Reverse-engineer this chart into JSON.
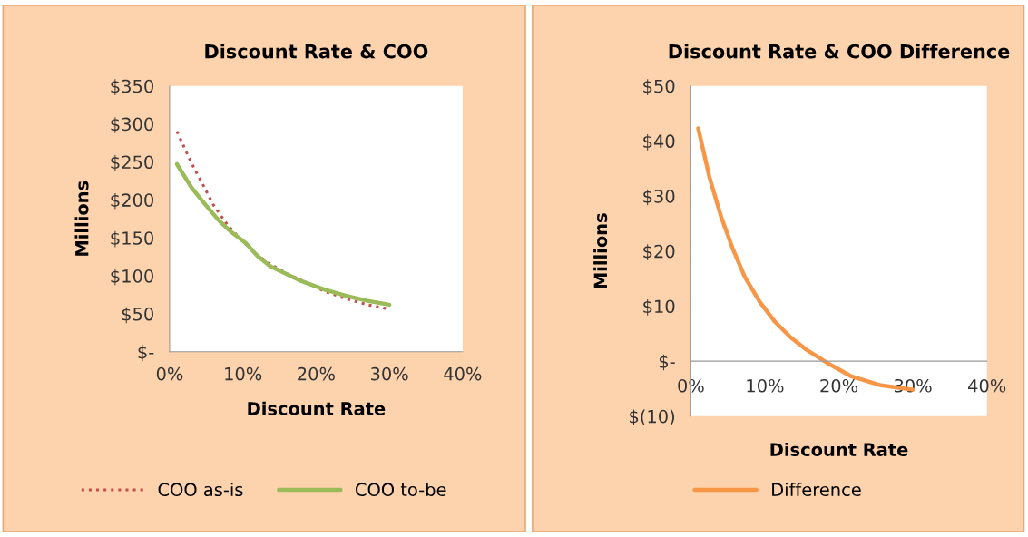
{
  "chart_data": [
    {
      "type": "line",
      "title": "Discount Rate & COO",
      "xlabel": "Discount Rate",
      "ylabel": "Millions",
      "legend": "bottom",
      "xlim": [
        0,
        40
      ],
      "xticks": [
        {
          "value": 0,
          "label": "0%"
        },
        {
          "value": 10,
          "label": "10%"
        },
        {
          "value": 20,
          "label": "20%"
        },
        {
          "value": 30,
          "label": "30%"
        },
        {
          "value": 40,
          "label": "40%"
        }
      ],
      "ylim": [
        0,
        350
      ],
      "yticks": [
        {
          "value": 0,
          "label": "$-"
        },
        {
          "value": 50,
          "label": "$50"
        },
        {
          "value": 100,
          "label": "$100"
        },
        {
          "value": 150,
          "label": "$150"
        },
        {
          "value": 200,
          "label": "$200"
        },
        {
          "value": 250,
          "label": "$250"
        },
        {
          "value": 300,
          "label": "$300"
        },
        {
          "value": 350,
          "label": "$350"
        }
      ],
      "series": [
        {
          "name": "COO as-is",
          "color": "#c0504d",
          "line_style": "dotted",
          "x": [
            1,
            3,
            4.6,
            6,
            7.9,
            10,
            12,
            14,
            16,
            18,
            21,
            24,
            27,
            30
          ],
          "values": [
            290,
            248,
            219,
            193,
            167,
            145,
            127,
            114,
            103,
            94,
            80,
            70,
            62,
            56
          ]
        },
        {
          "name": "COO to-be",
          "color": "#9bbb59",
          "line_style": "solid",
          "x": [
            1,
            3,
            4.6,
            6.7,
            8.5,
            10.4,
            12,
            13.7,
            16,
            18,
            21.1,
            24,
            27,
            30
          ],
          "values": [
            247,
            216,
            197,
            173,
            157,
            143,
            126,
            113,
            102,
            93,
            82,
            74,
            67,
            62
          ]
        }
      ]
    },
    {
      "type": "line",
      "title": "Discount Rate & COO Difference",
      "xlabel": "Discount Rate",
      "ylabel": "Millions",
      "legend": "bottom",
      "xlim": [
        0,
        40
      ],
      "xticks": [
        {
          "value": 0,
          "label": "0%"
        },
        {
          "value": 10,
          "label": "10%"
        },
        {
          "value": 20,
          "label": "20%"
        },
        {
          "value": 30,
          "label": "30%"
        },
        {
          "value": 40,
          "label": "40%"
        }
      ],
      "ylim": [
        -10,
        50
      ],
      "yticks": [
        {
          "value": -10,
          "label": "$(10)"
        },
        {
          "value": 0,
          "label": "$-"
        },
        {
          "value": 10,
          "label": "$10"
        },
        {
          "value": 20,
          "label": "$20"
        },
        {
          "value": 30,
          "label": "$30"
        },
        {
          "value": 40,
          "label": "$40"
        },
        {
          "value": 50,
          "label": "$50"
        }
      ],
      "series": [
        {
          "name": "Difference",
          "color": "#f79646",
          "line_style": "solid",
          "x": [
            1,
            2.5,
            4.1,
            5.7,
            7.3,
            9.3,
            11.4,
            13.5,
            15.5,
            18.4,
            21.6,
            25.7,
            30
          ],
          "values": [
            42.3,
            33.5,
            26.2,
            20.3,
            15.3,
            10.8,
            7.1,
            4.3,
            2.2,
            -0.3,
            -2.7,
            -4.4,
            -5.2
          ]
        }
      ]
    }
  ]
}
